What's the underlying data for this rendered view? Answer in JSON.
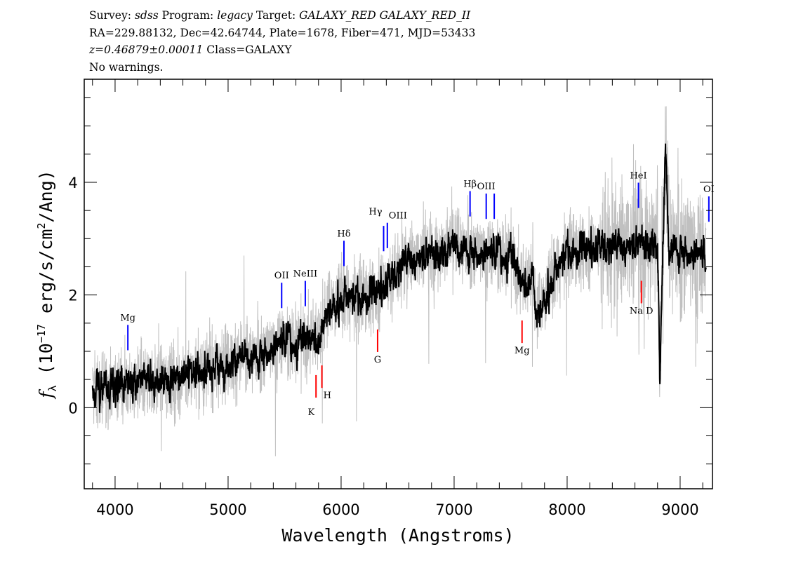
{
  "header": {
    "line1": {
      "survey_label": "Survey:",
      "survey": "sdss",
      "program_label": "Program:",
      "program": "legacy",
      "target_label": "Target:",
      "target": "GALAXY_RED GALAXY_RED_II"
    },
    "line2": "RA=229.88132, Dec=42.64744, Plate=1678, Fiber=471, MJD=53433",
    "line3": {
      "redshift": "z=0.46879±0.00011",
      "class": "Class=GALAXY"
    },
    "line4": "No warnings."
  },
  "chart_data": {
    "type": "line",
    "xlabel": "Wavelength (Angstroms)",
    "ylabel": "f_λ (10^-17 erg/s/cm^2/Ang)",
    "ylabel_parts": {
      "f": "f",
      "sub": "λ",
      "pre": " (10",
      "exp1": "−17",
      "mid": " erg/s/cm",
      "exp2": "2",
      "post": "/Ang)"
    },
    "xlim": [
      3727,
      9286
    ],
    "ylim": [
      -1.44,
      5.83
    ],
    "xticks": [
      4000,
      5000,
      6000,
      7000,
      8000,
      9000
    ],
    "yticks": [
      0,
      2,
      4
    ],
    "grid": false,
    "series": [
      {
        "role": "flux (raw, grey)",
        "color": "#c0c0c0"
      },
      {
        "role": "smoothed flux (black)",
        "color": "#000000"
      }
    ],
    "continuum_knots": {
      "x": [
        3800,
        4000,
        4300,
        4500,
        5000,
        5300,
        5500,
        5700,
        5800,
        5900,
        6000,
        6300,
        6450,
        6550,
        7000,
        7200,
        7500,
        7580,
        7620,
        7700,
        7720,
        8000,
        8500,
        8800,
        8820,
        8870,
        8900,
        9000,
        9250
      ],
      "y": [
        0.3,
        0.4,
        0.45,
        0.5,
        0.8,
        0.95,
        1.2,
        1.2,
        1.3,
        1.8,
        1.9,
        2.05,
        2.3,
        2.6,
        2.9,
        2.75,
        2.75,
        2.3,
        2.2,
        2.5,
        1.6,
        2.8,
        2.9,
        3.0,
        0.5,
        4.6,
        2.9,
        2.8,
        2.7
      ]
    },
    "lines": [
      {
        "label": "Mg",
        "wavelength": 4113,
        "type": "emission"
      },
      {
        "label": "OII",
        "wavelength": 5474,
        "type": "emission"
      },
      {
        "label": "NeIII",
        "wavelength": 5683,
        "type": "emission"
      },
      {
        "label": "K",
        "wavelength": 5778,
        "type": "absorption"
      },
      {
        "label": "H",
        "wavelength": 5830,
        "type": "absorption"
      },
      {
        "label": "Hδ",
        "wavelength": 6025,
        "type": "emission"
      },
      {
        "label": "G",
        "wavelength": 6323,
        "type": "absorption"
      },
      {
        "label": "Hγ",
        "wavelength": 6376,
        "type": "emission"
      },
      {
        "label": "OIII",
        "wavelength": 6409,
        "type": "emission"
      },
      {
        "label": "Hβ",
        "wavelength": 7141,
        "type": "emission"
      },
      {
        "label": "OIII",
        "wavelength": 7284,
        "type": "emission"
      },
      {
        "label": "",
        "wavelength": 7355,
        "type": "emission"
      },
      {
        "label": "Mg",
        "wavelength": 7601,
        "type": "absorption"
      },
      {
        "label": "HeI",
        "wavelength": 8631,
        "type": "emission"
      },
      {
        "label": "Na D",
        "wavelength": 8657,
        "type": "absorption"
      },
      {
        "label": "OI",
        "wavelength": 9254,
        "type": "emission"
      }
    ],
    "colors": {
      "emission": "#0000ff",
      "absorption": "#ff0000"
    }
  }
}
